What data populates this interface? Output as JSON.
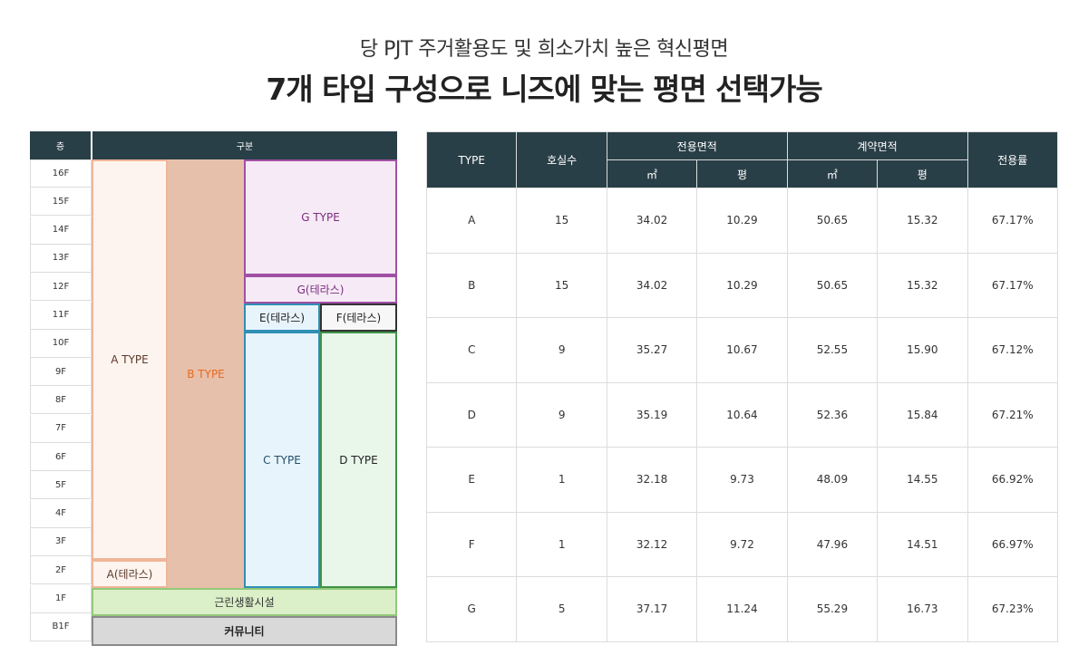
{
  "header": {
    "subtitle": "당 PJT 주거활용도 및 희소가치 높은 혁신평면",
    "title": "7개 타입 구성으로 니즈에 맞는 평면 선택가능"
  },
  "plan": {
    "floor_header": "층",
    "division_header": "구분",
    "floors": [
      "16F",
      "15F",
      "14F",
      "13F",
      "12F",
      "11F",
      "10F",
      "9F",
      "8F",
      "7F",
      "6F",
      "5F",
      "4F",
      "3F",
      "2F",
      "1F",
      "B1F"
    ],
    "blocks": {
      "a_type": "A TYPE",
      "a_terrace": "A(테라스)",
      "b_type": "B TYPE",
      "g_type": "G TYPE",
      "g_terrace": "G(테라스)",
      "e_terrace": "E(테라스)",
      "f_terrace": "F(테라스)",
      "c_type": "C TYPE",
      "d_type": "D TYPE",
      "community": "근린생활시설",
      "kiosk": "커뮤니티"
    }
  },
  "table": {
    "headers": {
      "type": "TYPE",
      "units": "호실수",
      "exclusive": "전용면적",
      "contract": "계약면적",
      "ratio": "전용률",
      "sqm": "㎡",
      "pyeong": "평"
    },
    "rows": [
      {
        "type": "A",
        "units": "15",
        "ex_sqm": "34.02",
        "ex_py": "10.29",
        "ct_sqm": "50.65",
        "ct_py": "15.32",
        "ratio": "67.17%"
      },
      {
        "type": "B",
        "units": "15",
        "ex_sqm": "34.02",
        "ex_py": "10.29",
        "ct_sqm": "50.65",
        "ct_py": "15.32",
        "ratio": "67.17%"
      },
      {
        "type": "C",
        "units": "9",
        "ex_sqm": "35.27",
        "ex_py": "10.67",
        "ct_sqm": "52.55",
        "ct_py": "15.90",
        "ratio": "67.12%"
      },
      {
        "type": "D",
        "units": "9",
        "ex_sqm": "35.19",
        "ex_py": "10.64",
        "ct_sqm": "52.36",
        "ct_py": "15.84",
        "ratio": "67.21%"
      },
      {
        "type": "E",
        "units": "1",
        "ex_sqm": "32.18",
        "ex_py": "9.73",
        "ct_sqm": "48.09",
        "ct_py": "14.55",
        "ratio": "66.92%"
      },
      {
        "type": "F",
        "units": "1",
        "ex_sqm": "32.12",
        "ex_py": "9.72",
        "ct_sqm": "47.96",
        "ct_py": "14.51",
        "ratio": "66.97%"
      },
      {
        "type": "G",
        "units": "5",
        "ex_sqm": "37.17",
        "ex_py": "11.24",
        "ct_sqm": "55.29",
        "ct_py": "16.73",
        "ratio": "67.23%"
      }
    ]
  }
}
